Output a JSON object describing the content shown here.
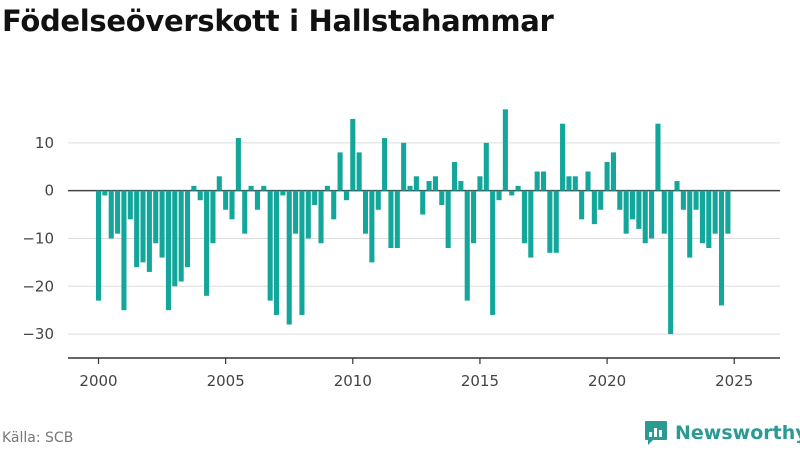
{
  "title": "Födelseöverskott i Hallstahammar",
  "source": "Källa: SCB",
  "brand": {
    "name": "Newsworthy",
    "icon": "newsworthy-chart-logo-icon",
    "color": "#2a9a93"
  },
  "chart_data": {
    "type": "bar",
    "bar_color": "#13a69a",
    "grid": true,
    "xlim": [
      1998.8,
      2026.8
    ],
    "ylim": [
      -35,
      20
    ],
    "yticks": [
      -30,
      -20,
      -10,
      0,
      10
    ],
    "ytick_labels": [
      "−30",
      "−20",
      "−10",
      "0",
      "10"
    ],
    "xticks": [
      2000,
      2005,
      2010,
      2015,
      2020,
      2025
    ],
    "xtick_labels": [
      "2000",
      "2005",
      "2010",
      "2015",
      "2020",
      "2025"
    ],
    "x_start": 2000.0,
    "x_step": 0.25,
    "values": [
      -23,
      -1,
      -10,
      -9,
      -25,
      -6,
      -16,
      -15,
      -17,
      -11,
      -14,
      -25,
      -20,
      -19,
      -16,
      1,
      -2,
      -22,
      -11,
      3,
      -4,
      -6,
      11,
      -9,
      1,
      -4,
      1,
      -23,
      -26,
      -1,
      -28,
      -9,
      -26,
      -10,
      -3,
      -11,
      1,
      -6,
      8,
      -2,
      15,
      8,
      -9,
      -15,
      -4,
      11,
      -12,
      -12,
      10,
      1,
      3,
      -5,
      2,
      3,
      -3,
      -12,
      6,
      2,
      -23,
      -11,
      3,
      10,
      -26,
      -2,
      17,
      -1,
      1,
      -11,
      -14,
      4,
      4,
      -13,
      -13,
      14,
      3,
      3,
      -6,
      4,
      -7,
      -4,
      6,
      8,
      -4,
      -9,
      -6,
      -8,
      -11,
      -10,
      14,
      -9,
      -30,
      2,
      -4,
      -14,
      -4,
      -11,
      -12,
      -9,
      -24,
      -9
    ]
  }
}
